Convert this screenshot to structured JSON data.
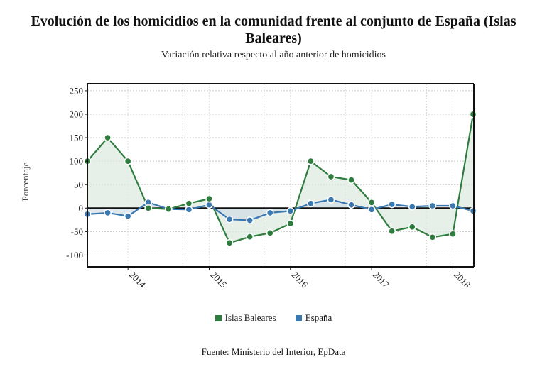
{
  "chart_data": {
    "type": "line",
    "title_line1": "Evolución de los homicidios en la comunidad frente al conjunto de España (Islas",
    "title_line2": "Baleares)",
    "subtitle": "Variación relativa respecto al año anterior de homicidios",
    "ylabel": "Porcentaje",
    "xlabel": "",
    "ylim": [
      -125,
      265
    ],
    "yticks": [
      250,
      200,
      150,
      100,
      50,
      0,
      -50,
      -100
    ],
    "x_count": 20,
    "xticks": [
      {
        "index": 2,
        "label": "2014"
      },
      {
        "index": 6,
        "label": "2015"
      },
      {
        "index": 10,
        "label": "2016"
      },
      {
        "index": 14,
        "label": "2017"
      },
      {
        "index": 18,
        "label": "2018"
      }
    ],
    "x_minor_grid": [
      4.7,
      8.7,
      12.7,
      16.7
    ],
    "grid": true,
    "legend_position": "bottom",
    "series": [
      {
        "name": "Islas Baleares",
        "color": "#2e7d3e",
        "fill": "#dfe9e1",
        "values": [
          100,
          150,
          100,
          0,
          -2,
          10,
          20,
          -74,
          -61,
          -53,
          -33,
          100,
          67,
          60,
          12,
          -49,
          -40,
          -62,
          -55,
          200
        ]
      },
      {
        "name": "España",
        "color": "#3a78b0",
        "fill": "#c9d7e3",
        "values": [
          -13,
          -10,
          -17,
          12,
          -2,
          -3,
          7,
          -24,
          -26,
          -10,
          -6,
          10,
          18,
          7,
          -3,
          8,
          3,
          5,
          5,
          -6
        ]
      }
    ]
  },
  "source": "Fuente: Ministerio del Interior, EpData"
}
